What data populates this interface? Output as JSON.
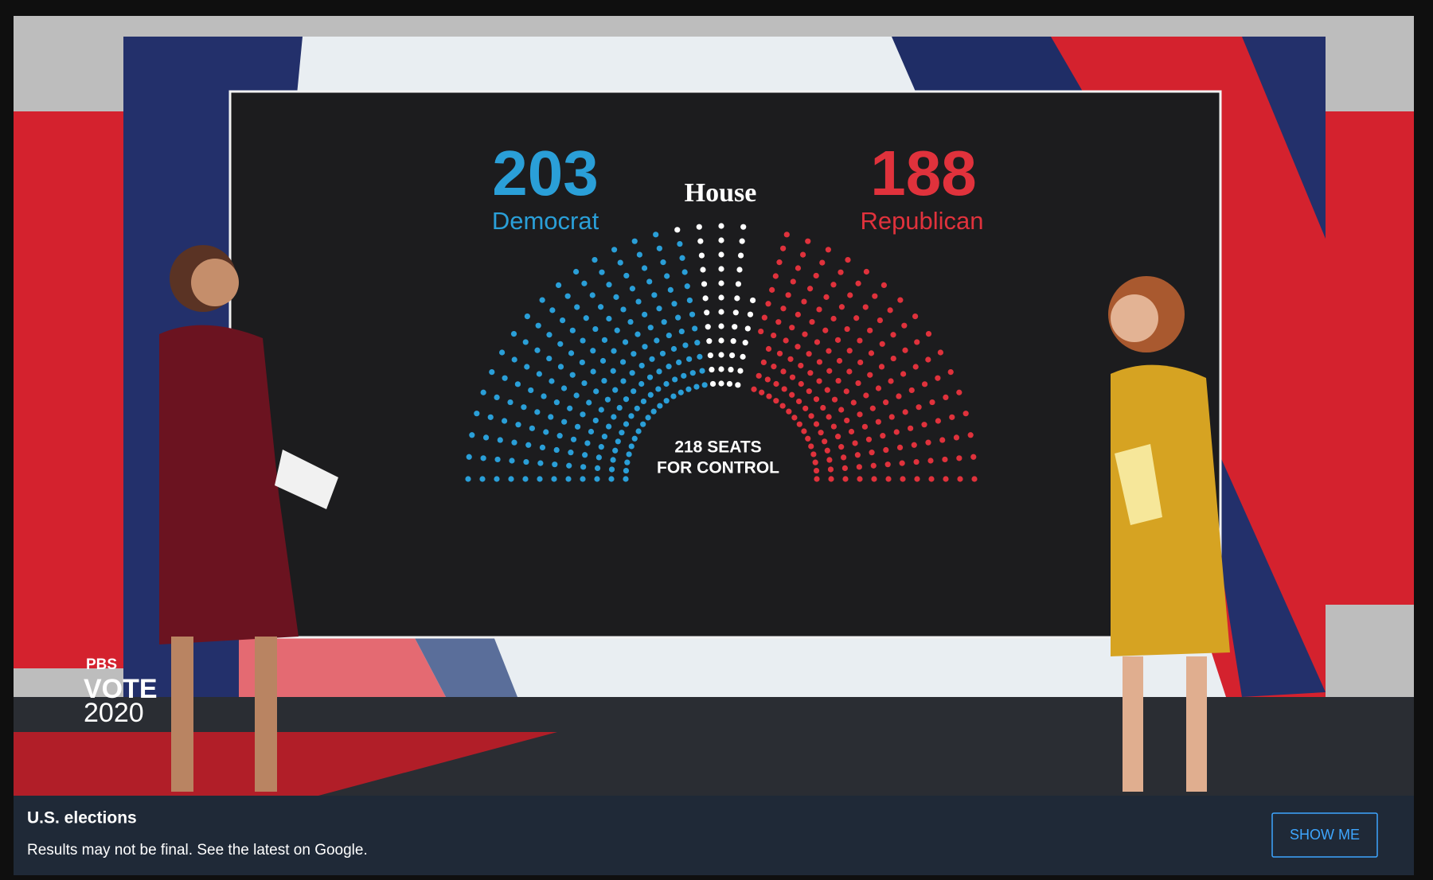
{
  "chart_data": {
    "type": "parliament",
    "title": "House",
    "series": [
      {
        "name": "Democrat",
        "value": 203,
        "color": "#2a9fd8"
      },
      {
        "name": "Republican",
        "value": 188,
        "color": "#e0323c"
      }
    ],
    "total_seats": 435,
    "undecided_color": "#ffffff",
    "annotation": [
      "218 SEATS",
      "FOR CONTROL"
    ]
  },
  "logo": {
    "network": "PBS",
    "line1": "VOTE",
    "line2": "2020"
  },
  "banner": {
    "title": "U.S. elections",
    "text": "Results may not be final. See the latest on Google.",
    "button": "SHOW ME"
  }
}
